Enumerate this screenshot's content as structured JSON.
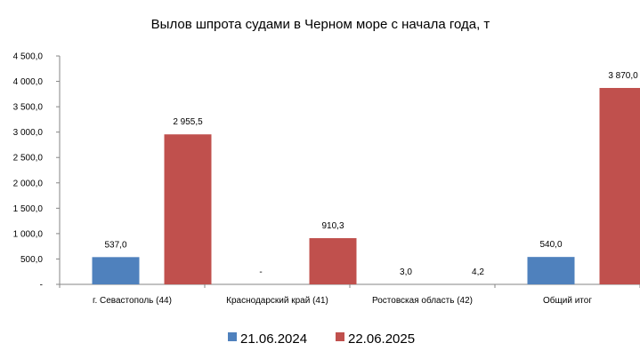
{
  "chart_data": {
    "type": "bar",
    "title": "Вылов шпрота судами в Черном море с начала  года, т",
    "xlabel": "",
    "ylabel": "",
    "ylim": [
      0,
      4500
    ],
    "yticks": [
      0,
      500,
      1000,
      1500,
      2000,
      2500,
      3000,
      3500,
      4000,
      4500
    ],
    "ytick_labels": [
      "-",
      "500,0",
      "1 000,0",
      "1 500,0",
      "2 000,0",
      "2 500,0",
      "3 000,0",
      "3 500,0",
      "4 000,0",
      "4 500,0"
    ],
    "categories": [
      "г. Севастополь (44)",
      "Краснодарский край (41)",
      "Ростовская область (42)",
      "Общий итог"
    ],
    "series": [
      {
        "name": "21.06.2024",
        "color": "#4F81BD",
        "values": [
          537.0,
          0,
          3.0,
          540.0
        ],
        "labels": [
          "537,0",
          "-",
          "3,0",
          "540,0"
        ]
      },
      {
        "name": "22.06.2025",
        "color": "#C0504D",
        "values": [
          2955.5,
          910.3,
          4.2,
          3870.0
        ],
        "labels": [
          "2 955,5",
          "910,3",
          "4,2",
          "3 870,0"
        ]
      }
    ],
    "grid": false,
    "legend_position": "bottom"
  }
}
